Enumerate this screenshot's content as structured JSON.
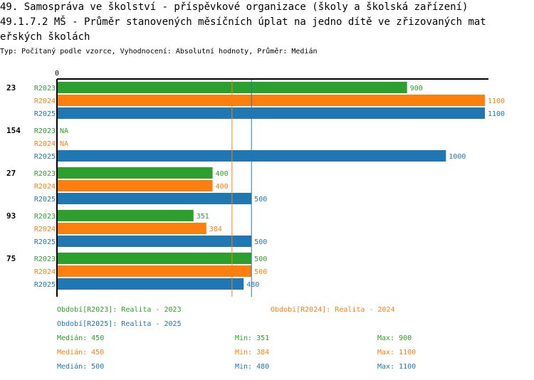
{
  "title_line1": "49. Samospráva ve školství - příspěvkové organizace (školy a školská zařízení)",
  "title_line2": "49.1.7.2 MŠ - Průměr stanovených měsíčních úplat na jedno dítě ve zřizovaných mat",
  "title_line3": "eřských školách",
  "subtitle": "Typ: Počítaný podle vzorce, Vyhodnocení: Absolutní hodnoty, Průměr: Medián",
  "colors": {
    "R2023": "#2ca02c",
    "R2024": "#ff7f0e",
    "R2025": "#1f77b4"
  },
  "chart_data": {
    "type": "bar",
    "orientation": "horizontal",
    "axis_zero_label": "0",
    "xlim": [
      0,
      1100
    ],
    "groups": [
      {
        "label": "23",
        "bars": [
          {
            "series": "R2023",
            "value": 900,
            "label": "900"
          },
          {
            "series": "R2024",
            "value": 1100,
            "label": "1100"
          },
          {
            "series": "R2025",
            "value": 1100,
            "label": "1100"
          }
        ]
      },
      {
        "label": "154",
        "bars": [
          {
            "series": "R2023",
            "value": null,
            "label": "NA"
          },
          {
            "series": "R2024",
            "value": null,
            "label": "NA"
          },
          {
            "series": "R2025",
            "value": 1000,
            "label": "1000"
          }
        ]
      },
      {
        "label": "27",
        "bars": [
          {
            "series": "R2023",
            "value": 400,
            "label": "400"
          },
          {
            "series": "R2024",
            "value": 400,
            "label": "400"
          },
          {
            "series": "R2025",
            "value": 500,
            "label": "500"
          }
        ]
      },
      {
        "label": "93",
        "bars": [
          {
            "series": "R2023",
            "value": 351,
            "label": "351"
          },
          {
            "series": "R2024",
            "value": 384,
            "label": "384"
          },
          {
            "series": "R2025",
            "value": 500,
            "label": "500"
          }
        ]
      },
      {
        "label": "75",
        "bars": [
          {
            "series": "R2023",
            "value": 500,
            "label": "500"
          },
          {
            "series": "R2024",
            "value": 500,
            "label": "500"
          },
          {
            "series": "R2025",
            "value": 480,
            "label": "480"
          }
        ]
      }
    ],
    "reference_lines": [
      {
        "series": "R2024",
        "value": 450
      },
      {
        "series": "R2025",
        "value": 500
      }
    ]
  },
  "legend": {
    "r2023": "Období[R2023]: Realita - 2023",
    "r2024": "Období[R2024]: Realita - 2024",
    "r2025": "Období[R2025]: Realita - 2025"
  },
  "stats": {
    "r2023": {
      "median": "Medián: 450",
      "min": "Min: 351",
      "max": "Max: 900"
    },
    "r2024": {
      "median": "Medián: 450",
      "min": "Min: 384",
      "max": "Max: 1100"
    },
    "r2025": {
      "median": "Medián: 500",
      "min": "Min: 480",
      "max": "Max: 1100"
    }
  }
}
